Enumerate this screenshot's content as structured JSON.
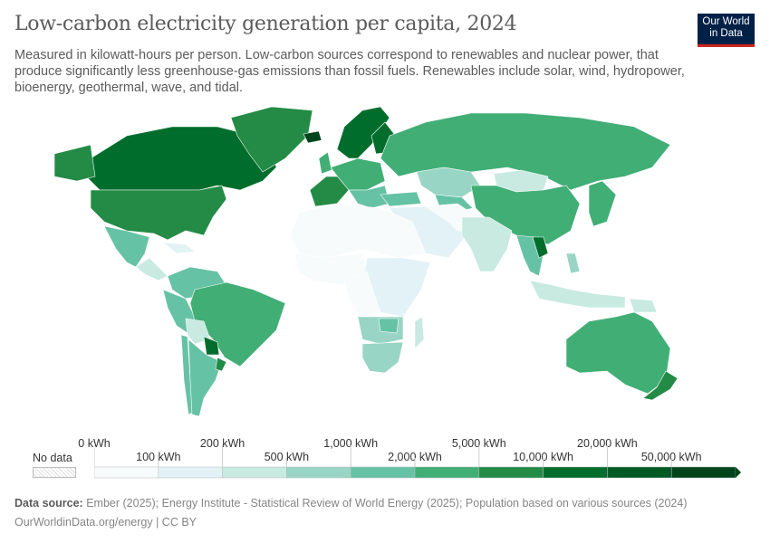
{
  "title": "Low-carbon electricity generation per capita, 2024",
  "subtitle": "Measured in kilowatt-hours per person. Low-carbon sources correspond to renewables and nuclear power, that produce significantly less greenhouse-gas emissions than fossil fuels. Renewables include solar, wind, hydropower, bioenergy, geothermal, wave, and tidal.",
  "logo": {
    "line1": "Our World",
    "line2": "in Data"
  },
  "legend": {
    "no_data_label": "No data",
    "bins": [
      {
        "label": "0 kWh",
        "color": "#f7fbfb"
      },
      {
        "label": "100 kWh",
        "color": "#e3f2f6"
      },
      {
        "label": "200 kWh",
        "color": "#c8eae0"
      },
      {
        "label": "500 kWh",
        "color": "#99d5c4"
      },
      {
        "label": "1,000 kWh",
        "color": "#66c2a4"
      },
      {
        "label": "2,000 kWh",
        "color": "#41ae76"
      },
      {
        "label": "5,000 kWh",
        "color": "#238b45"
      },
      {
        "label": "10,000 kWh",
        "color": "#006d2c"
      },
      {
        "label": "20,000 kWh",
        "color": "#005a24"
      },
      {
        "label": "50,000 kWh",
        "color": "#00441b"
      }
    ]
  },
  "footer": {
    "source_label": "Data source:",
    "source_text": " Ember (2025); Energy Institute - Statistical Review of World Energy (2025); Population based on various sources (2024)",
    "url": "OurWorldinData.org/energy | CC BY"
  }
}
